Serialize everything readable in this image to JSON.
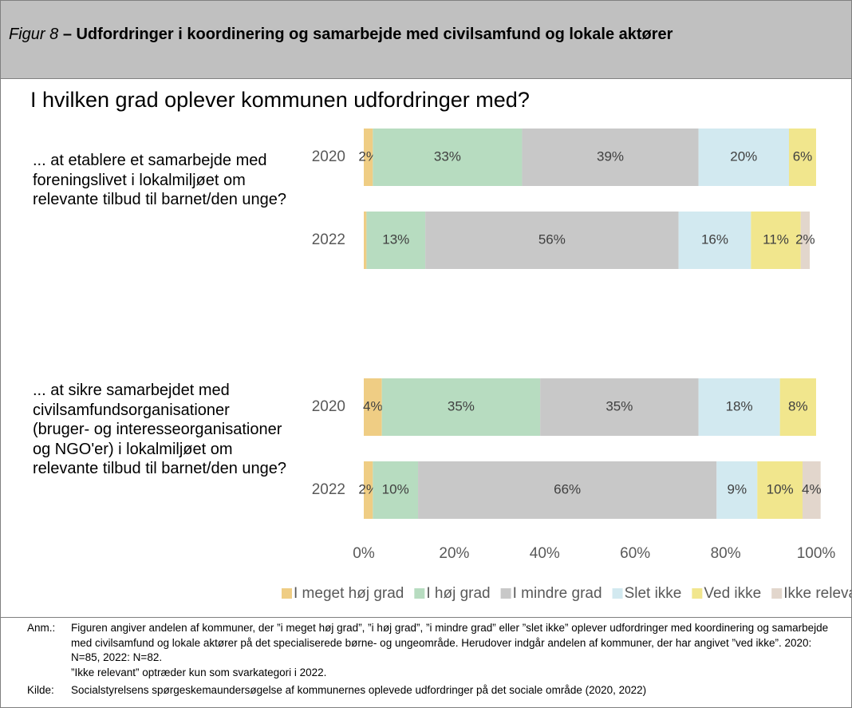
{
  "header": {
    "figure_label": "Figur 8",
    "title": "– Udfordringer i koordinering og samarbejde med civilsamfund og lokale aktører"
  },
  "chart_data": {
    "type": "bar",
    "orientation": "horizontal",
    "stacked": true,
    "title": "I hvilken grad oplever kommunen udfordringer med?",
    "groups": [
      "... at etablere et samarbejde med foreningslivet i lokalmiljøet om relevante tilbud til barnet/den unge?",
      "... at sikre samarbejdet med civilsamfundsorganisationer (bruger- og interesseorganisationer og NGO'er) i lokalmiljøet om relevante tilbud til barnet/den unge?"
    ],
    "categories": [
      "2020",
      "2022",
      "2020",
      "2022"
    ],
    "series": [
      {
        "name": "I meget høj grad",
        "color": "#efcd84",
        "values": [
          2,
          0.6,
          4,
          2
        ],
        "value_labels": [
          "2%",
          null,
          "4%",
          "2%"
        ]
      },
      {
        "name": "I høj grad",
        "color": "#b7dcc0",
        "values": [
          33,
          13,
          35,
          10
        ],
        "value_labels": [
          "33%",
          "13%",
          "35%",
          "10%"
        ]
      },
      {
        "name": "I mindre grad",
        "color": "#c8c8c8",
        "values": [
          39,
          56,
          35,
          66
        ],
        "value_labels": [
          "39%",
          "56%",
          "35%",
          "66%"
        ]
      },
      {
        "name": "Slet ikke",
        "color": "#d2e9f0",
        "values": [
          20,
          16,
          18,
          9
        ],
        "value_labels": [
          "20%",
          "16%",
          "18%",
          "9%"
        ]
      },
      {
        "name": "Ved ikke",
        "color": "#f1e68d",
        "values": [
          6,
          11,
          8,
          10
        ],
        "value_labels": [
          "6%",
          "11%",
          "8%",
          "10%"
        ]
      },
      {
        "name": "Ikke relevant",
        "color": "#e2d6cc",
        "values": [
          null,
          2,
          null,
          4
        ],
        "value_labels": [
          null,
          "2%",
          null,
          "4%"
        ]
      }
    ],
    "xlim": [
      0,
      100
    ],
    "xticks": [
      {
        "value": 0,
        "label": "0%"
      },
      {
        "value": 20,
        "label": "20%"
      },
      {
        "value": 40,
        "label": "40%"
      },
      {
        "value": 60,
        "label": "60%"
      },
      {
        "value": 80,
        "label": "80%"
      },
      {
        "value": 100,
        "label": "100%"
      }
    ],
    "grid": false,
    "legend": "bottom"
  },
  "notes": [
    {
      "label": "Anm.:",
      "paragraphs": [
        "Figuren angiver andelen af kommuner, der ”i meget høj grad”, ”i høj grad”, ”i mindre grad” eller ”slet ikke” oplever udfordringer med koordinering og samarbejde med civilsamfund og lokale aktører på det specialiserede børne- og ungeområde. Herudover indgår andelen af kommuner, der har angivet ”ved ikke”. 2020: N=85, 2022: N=82.",
        "”Ikke relevant” optræder kun som svarkategori i 2022."
      ]
    },
    {
      "label": "Kilde:",
      "paragraphs": [
        "Socialstyrelsens spørgeskemaundersøgelse af kommunernes oplevede udfordringer på det sociale område (2020, 2022)"
      ]
    }
  ]
}
